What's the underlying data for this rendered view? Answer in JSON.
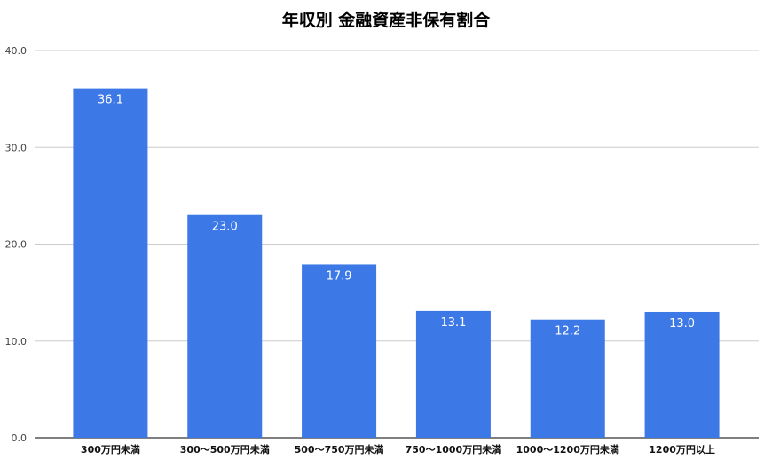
{
  "chart_data": {
    "type": "bar",
    "title": "年収別 金融資産非保有割合",
    "categories": [
      "300万円未満",
      "300〜500万円未満",
      "500〜750万円未満",
      "750〜1000万円未満",
      "1000〜1200万円未満",
      "1200万円以上"
    ],
    "values": [
      36.1,
      23.0,
      17.9,
      13.1,
      12.2,
      13.0
    ],
    "data_labels": [
      "36.1",
      "23.0",
      "17.9",
      "13.1",
      "12.2",
      "13.0"
    ],
    "xlabel": "",
    "ylabel": "",
    "ylim": [
      0,
      40
    ],
    "yticks": [
      "0.0",
      "10.0",
      "20.0",
      "30.0",
      "40.0"
    ],
    "grid": true,
    "bar_color": "#3c78e6"
  }
}
